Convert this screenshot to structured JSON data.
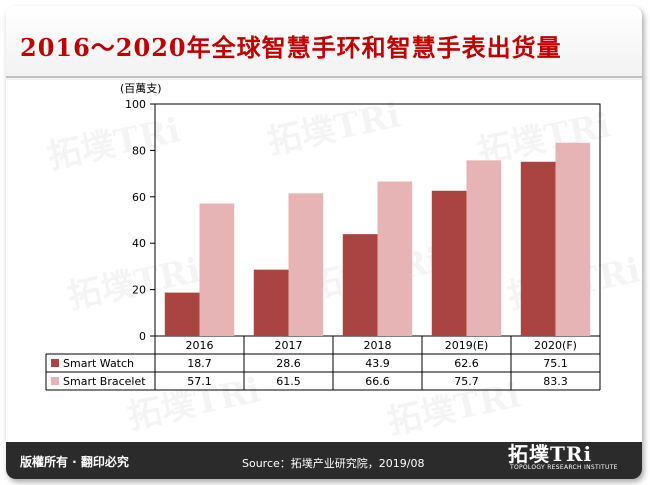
{
  "title": "2016～2020年全球智慧手环和智慧手表出货量",
  "colors": {
    "title": "#c00000",
    "watch": "#a94442",
    "bracelet": "#e6b4b4",
    "axis": "#000000"
  },
  "chart_data": {
    "type": "bar",
    "title": "2016～2020年全球智慧手环和智慧手表出货量",
    "unit_label": "(百萬支)",
    "categories": [
      "2016",
      "2017",
      "2018",
      "2019(E)",
      "2020(F)"
    ],
    "series": [
      {
        "name": "Smart Watch",
        "values": [
          18.7,
          28.6,
          43.9,
          62.6,
          75.1
        ],
        "value_labels": [
          "18.7",
          "28.6",
          "43.9",
          "62.6",
          "75.1"
        ]
      },
      {
        "name": "Smart Bracelet",
        "values": [
          57.1,
          61.5,
          66.6,
          75.7,
          83.3
        ],
        "value_labels": [
          "57.1",
          "61.5",
          "66.6",
          "75.7",
          "83.3"
        ]
      }
    ],
    "ylim": [
      0,
      100
    ],
    "yticks": [
      0,
      20,
      40,
      60,
      80,
      100
    ],
    "ytick_labels": [
      "0",
      "20",
      "40",
      "60",
      "80",
      "100"
    ],
    "grid": false,
    "legend": "data-table below chart"
  },
  "footer": {
    "rights": "版權所有 · 翻印必究",
    "source": "Source：拓墣产业研究院，2019/08"
  },
  "logo": {
    "text": "拓墣TRi",
    "subtitle": "TOPOLOGY RESEARCH INSTITUTE"
  },
  "watermark": {
    "text": "拓墣TRi"
  }
}
